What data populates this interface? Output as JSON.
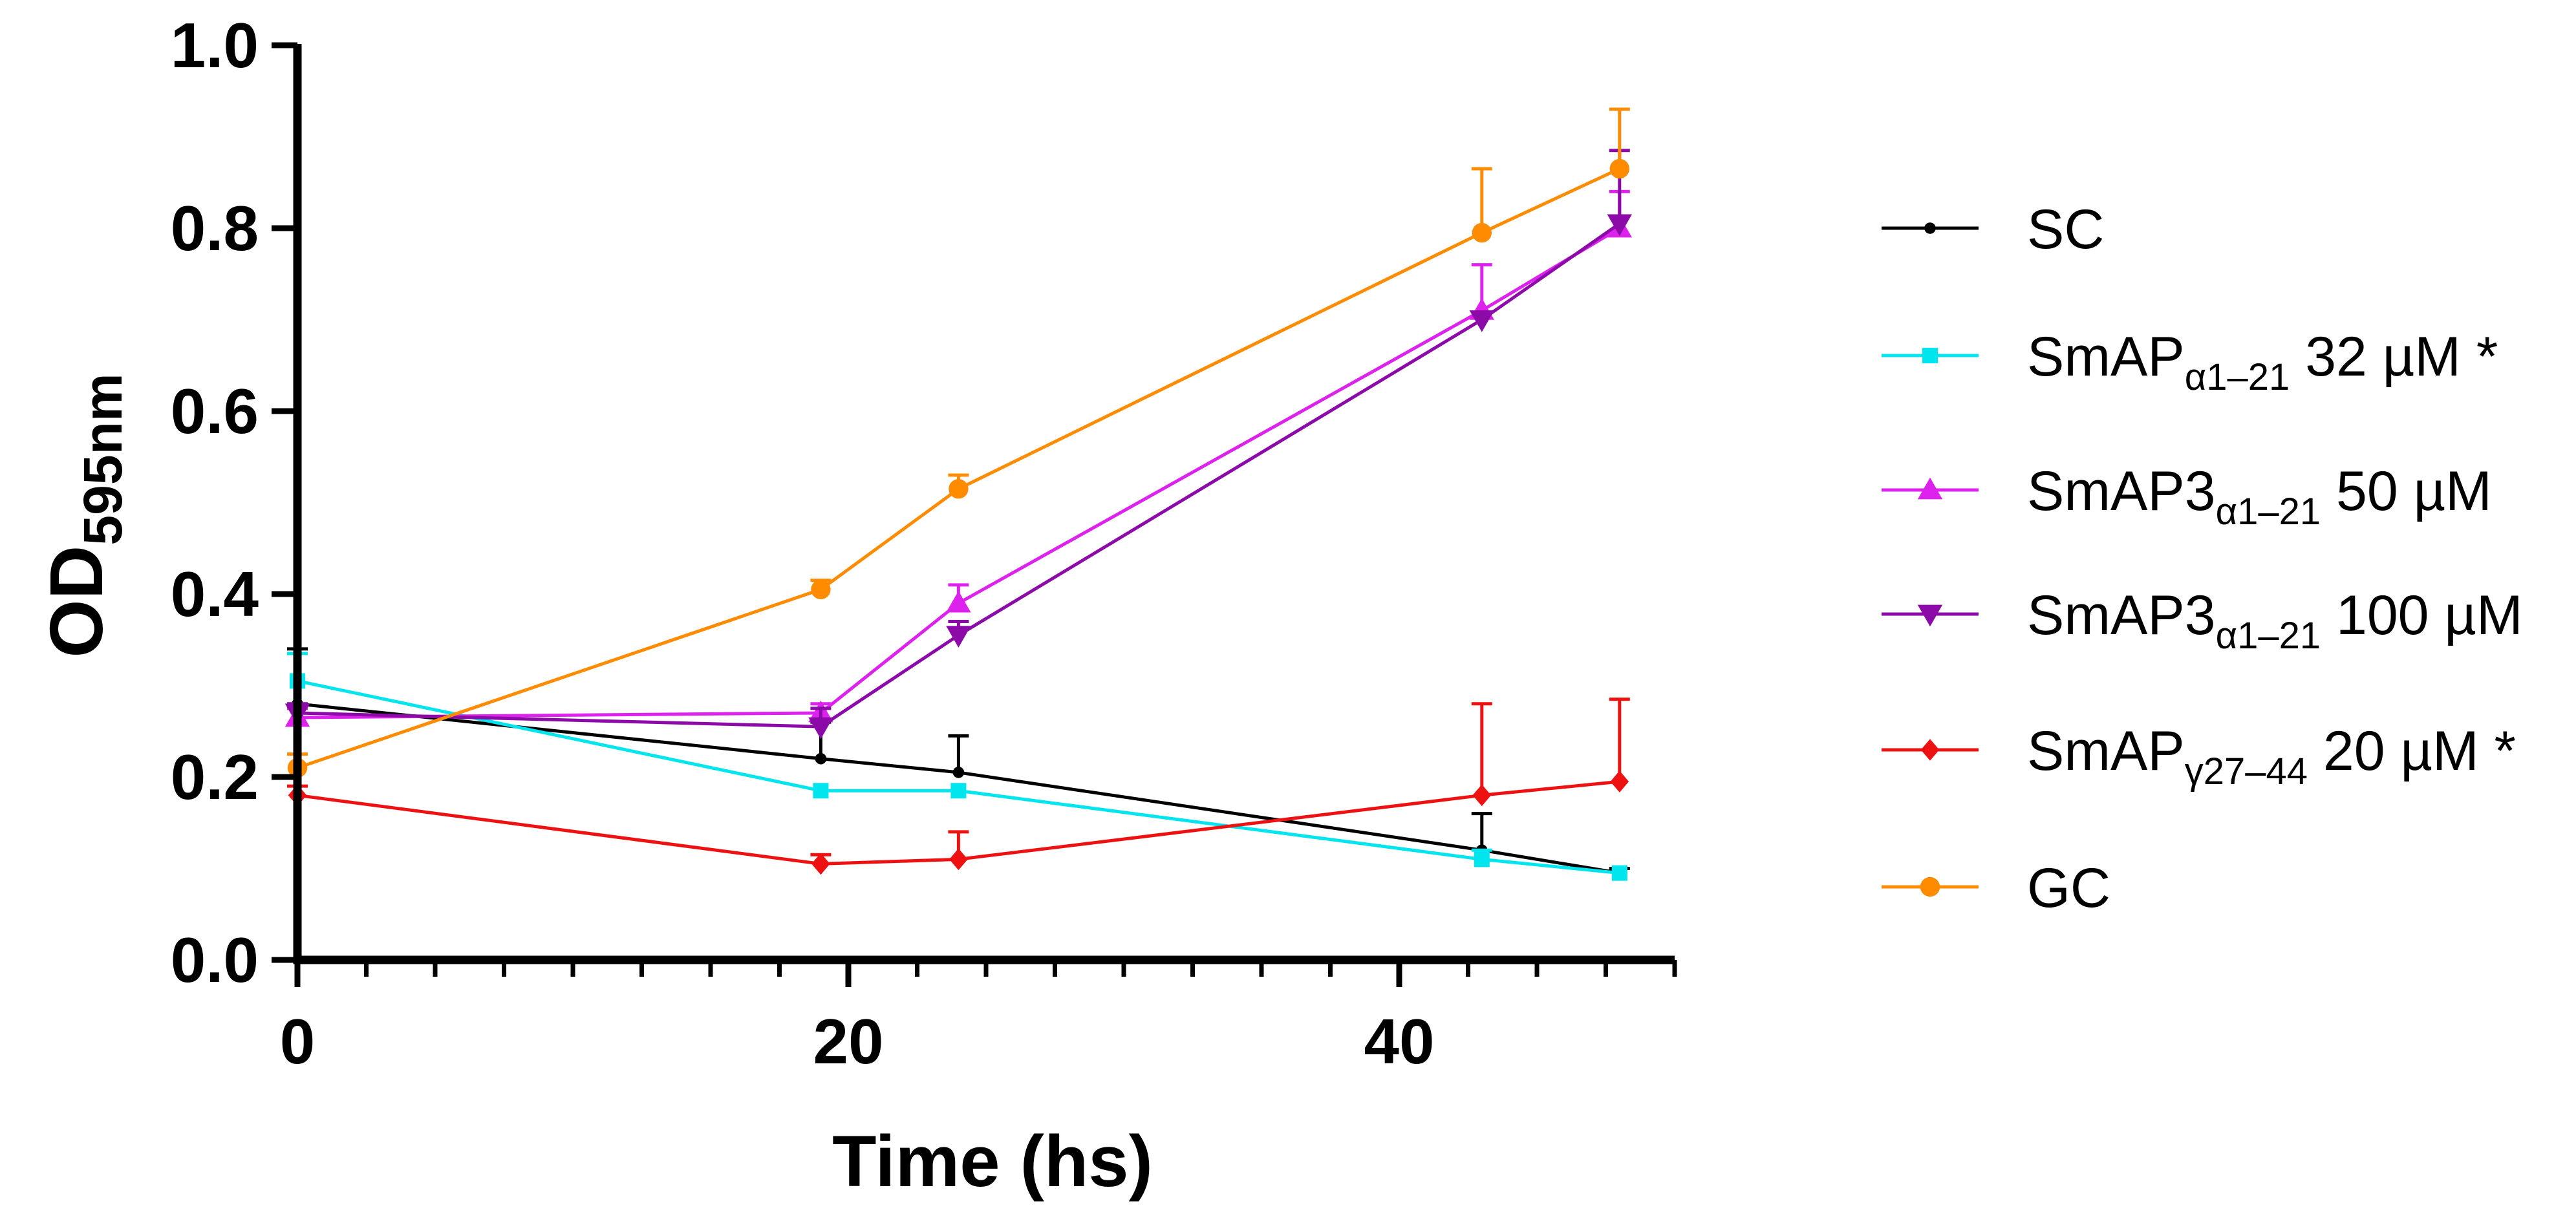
{
  "chart_data": {
    "type": "line",
    "title": "",
    "xlabel": "Time (hs)",
    "ylabel": {
      "main": "OD",
      "sub": "595nm"
    },
    "xlim": [
      0,
      50
    ],
    "ylim": [
      0,
      1.0
    ],
    "x_ticks": [
      0,
      20,
      40
    ],
    "x_tick_labels": [
      "0",
      "20",
      "40"
    ],
    "y_ticks": [
      0.0,
      0.2,
      0.4,
      0.6,
      0.8,
      1.0
    ],
    "y_tick_labels": [
      "0.0",
      "0.2",
      "0.4",
      "0.6",
      "0.8",
      "1.0"
    ],
    "grid": false,
    "legend_position": "right",
    "series": [
      {
        "name": "SC",
        "legend": {
          "base": "SC",
          "sub": "",
          "suffix": ""
        },
        "color": "#000000",
        "marker": "dot",
        "x": [
          0,
          19,
          24,
          43,
          48
        ],
        "y": [
          0.28,
          0.22,
          0.205,
          0.12,
          0.095
        ],
        "err": [
          0.06,
          0.04,
          0.04,
          0.04,
          0.005
        ]
      },
      {
        "name": "SmAPα1–21 32 µM *",
        "legend": {
          "base": "SmAP",
          "sub": "α1–21",
          "suffix": " 32 µM *"
        },
        "color": "#00E5EE",
        "marker": "square",
        "x": [
          0,
          19,
          24,
          43,
          48
        ],
        "y": [
          0.305,
          0.185,
          0.185,
          0.11,
          0.095
        ],
        "err": [
          0.03,
          0.0,
          0.0,
          0.01,
          0.0
        ]
      },
      {
        "name": "SmAP3α1–21 50 µM",
        "legend": {
          "base": "SmAP3",
          "sub": "α1–21",
          "suffix": " 50 µM"
        },
        "color": "#DD22EE",
        "marker": "triangle-up",
        "x": [
          0,
          19,
          24,
          43,
          48
        ],
        "y": [
          0.265,
          0.27,
          0.39,
          0.71,
          0.8
        ],
        "err": [
          0.01,
          0.01,
          0.02,
          0.05,
          0.04
        ]
      },
      {
        "name": "SmAP3α1–21 100 µM",
        "legend": {
          "base": "SmAP3",
          "sub": "α1–21",
          "suffix": " 100 µM"
        },
        "color": "#8B0AA8",
        "marker": "triangle-down",
        "x": [
          0,
          19,
          24,
          43,
          48
        ],
        "y": [
          0.27,
          0.255,
          0.355,
          0.7,
          0.805
        ],
        "err": [
          0.01,
          0.02,
          0.015,
          0.0,
          0.08
        ]
      },
      {
        "name": "SmAPγ27–44 20 µM *",
        "legend": {
          "base": "SmAP",
          "sub": "γ27–44",
          "suffix": "  20 µM *"
        },
        "color": "#EE1111",
        "marker": "diamond",
        "x": [
          0,
          19,
          24,
          43,
          48
        ],
        "y": [
          0.18,
          0.105,
          0.11,
          0.18,
          0.195
        ],
        "err": [
          0.01,
          0.01,
          0.03,
          0.1,
          0.09
        ]
      },
      {
        "name": "GC",
        "legend": {
          "base": "GC",
          "sub": "",
          "suffix": ""
        },
        "color": "#FF8C00",
        "marker": "circle",
        "x": [
          0,
          19,
          24,
          43,
          48
        ],
        "y": [
          0.21,
          0.405,
          0.515,
          0.795,
          0.865
        ],
        "err": [
          0.015,
          0.01,
          0.015,
          0.07,
          0.065
        ]
      }
    ]
  }
}
